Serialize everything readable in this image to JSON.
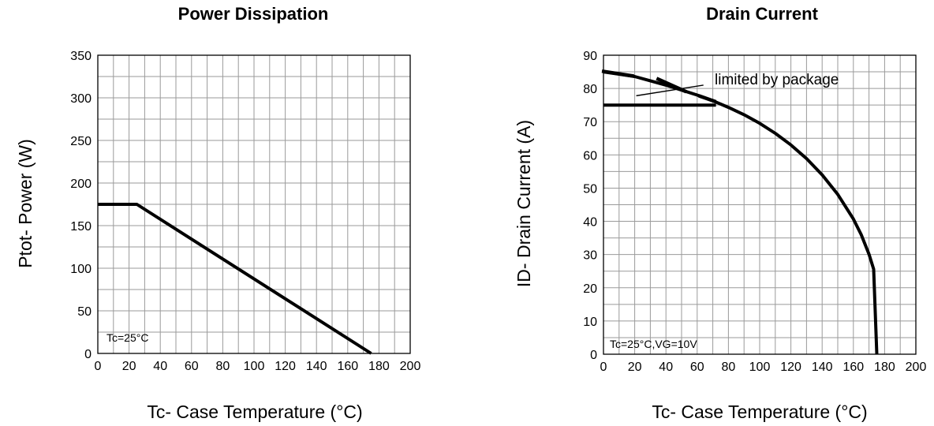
{
  "chart_data": [
    {
      "type": "line",
      "title": "Power Dissipation",
      "xlabel": "Tc- Case Temperature (°C)",
      "ylabel": "Ptot- Power (W)",
      "xlim": [
        0,
        200
      ],
      "ylim": [
        0,
        350
      ],
      "x_ticks": [
        "0",
        "20",
        "40",
        "60",
        "80",
        "100",
        "120",
        "140",
        "160",
        "180",
        "200"
      ],
      "y_ticks": [
        "0",
        "50",
        "100",
        "150",
        "200",
        "250",
        "300",
        "350"
      ],
      "grid": true,
      "annotation": "Tc=25°C",
      "series": [
        {
          "x": [
            0,
            25,
            175
          ],
          "y": [
            175,
            175,
            0
          ]
        }
      ]
    },
    {
      "type": "line",
      "title": "Drain Current",
      "xlabel": "Tc- Case Temperature (°C)",
      "ylabel": "ID- Drain Current (A)",
      "xlim": [
        0,
        200
      ],
      "ylim": [
        0,
        90
      ],
      "x_ticks": [
        "0",
        "20",
        "40",
        "60",
        "80",
        "100",
        "120",
        "140",
        "160",
        "180",
        "200"
      ],
      "y_ticks": [
        "0",
        "10",
        "20",
        "30",
        "40",
        "50",
        "60",
        "70",
        "80",
        "90"
      ],
      "grid": true,
      "annotation": "Tc=25°C,VG=10V",
      "package_label": "limited by package",
      "package_limit": 75,
      "series": [
        {
          "x": [
            0,
            10,
            20,
            30,
            40,
            50,
            60,
            70,
            80,
            90,
            100,
            110,
            120,
            130,
            140,
            150,
            160,
            165,
            170,
            173,
            175
          ],
          "y": [
            85,
            84.3,
            83.6,
            82.3,
            81,
            79.5,
            78,
            76.3,
            74.3,
            72.1,
            69.5,
            66.5,
            63,
            58.9,
            54,
            48.1,
            40.7,
            36,
            30.1,
            25.6,
            0
          ]
        },
        {
          "x": [
            0,
            72
          ],
          "y": [
            75,
            75
          ]
        }
      ]
    }
  ]
}
